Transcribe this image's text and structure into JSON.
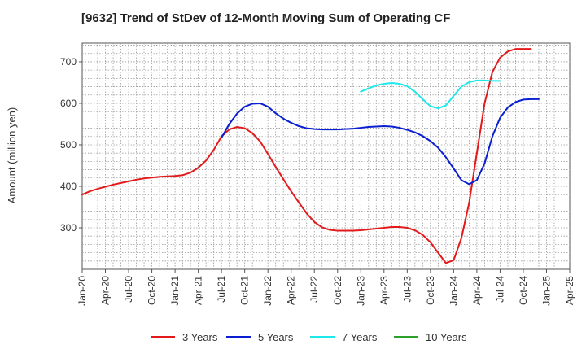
{
  "chart_data": {
    "type": "line",
    "title": "[9632]  Trend of StDev of 12-Month Moving Sum of Operating CF",
    "xlabel": "",
    "ylabel": "Amount (million yen)",
    "ylim": [
      200,
      745
    ],
    "yticks": [
      300,
      400,
      500,
      600,
      700
    ],
    "x_ticks": [
      "Jan-20",
      "Apr-20",
      "Jul-20",
      "Oct-20",
      "Jan-21",
      "Apr-21",
      "Jul-21",
      "Oct-21",
      "Jan-22",
      "Apr-22",
      "Jul-22",
      "Oct-22",
      "Jan-23",
      "Apr-23",
      "Jul-23",
      "Oct-23",
      "Jan-24",
      "Apr-24",
      "Jul-24",
      "Oct-24",
      "Jan-25",
      "Apr-25"
    ],
    "x_range": [
      "2020-01",
      "2025-04"
    ],
    "grid": true,
    "legend_position": "bottom",
    "series": [
      {
        "name": "3 Years",
        "color": "#e31a1c",
        "points": [
          [
            "2020-01",
            380
          ],
          [
            "2020-02",
            388
          ],
          [
            "2020-03",
            394
          ],
          [
            "2020-04",
            399
          ],
          [
            "2020-05",
            404
          ],
          [
            "2020-06",
            408
          ],
          [
            "2020-07",
            412
          ],
          [
            "2020-08",
            416
          ],
          [
            "2020-09",
            419
          ],
          [
            "2020-10",
            421
          ],
          [
            "2020-11",
            423
          ],
          [
            "2020-12",
            424
          ],
          [
            "2021-01",
            425
          ],
          [
            "2021-02",
            427
          ],
          [
            "2021-03",
            433
          ],
          [
            "2021-04",
            445
          ],
          [
            "2021-05",
            462
          ],
          [
            "2021-06",
            488
          ],
          [
            "2021-07",
            520
          ],
          [
            "2021-08",
            537
          ],
          [
            "2021-09",
            543
          ],
          [
            "2021-10",
            540
          ],
          [
            "2021-11",
            528
          ],
          [
            "2021-12",
            508
          ],
          [
            "2022-01",
            478
          ],
          [
            "2022-02",
            447
          ],
          [
            "2022-03",
            417
          ],
          [
            "2022-04",
            388
          ],
          [
            "2022-05",
            361
          ],
          [
            "2022-06",
            335
          ],
          [
            "2022-07",
            314
          ],
          [
            "2022-08",
            301
          ],
          [
            "2022-09",
            295
          ],
          [
            "2022-10",
            293
          ],
          [
            "2022-11",
            293
          ],
          [
            "2022-12",
            293
          ],
          [
            "2023-01",
            294
          ],
          [
            "2023-02",
            296
          ],
          [
            "2023-03",
            298
          ],
          [
            "2023-04",
            300
          ],
          [
            "2023-05",
            302
          ],
          [
            "2023-06",
            302
          ],
          [
            "2023-07",
            300
          ],
          [
            "2023-08",
            294
          ],
          [
            "2023-09",
            283
          ],
          [
            "2023-10",
            265
          ],
          [
            "2023-11",
            240
          ],
          [
            "2023-12",
            215
          ],
          [
            "2024-01",
            222
          ],
          [
            "2024-02",
            275
          ],
          [
            "2024-03",
            360
          ],
          [
            "2024-04",
            480
          ],
          [
            "2024-05",
            600
          ],
          [
            "2024-06",
            675
          ],
          [
            "2024-07",
            710
          ],
          [
            "2024-08",
            725
          ],
          [
            "2024-09",
            731
          ],
          [
            "2024-10",
            731
          ],
          [
            "2024-11",
            731
          ]
        ]
      },
      {
        "name": "5 Years",
        "color": "#0a1fd1",
        "points": [
          [
            "2021-07",
            517
          ],
          [
            "2021-08",
            550
          ],
          [
            "2021-09",
            575
          ],
          [
            "2021-10",
            592
          ],
          [
            "2021-11",
            599
          ],
          [
            "2021-12",
            600
          ],
          [
            "2022-01",
            592
          ],
          [
            "2022-02",
            576
          ],
          [
            "2022-03",
            563
          ],
          [
            "2022-04",
            553
          ],
          [
            "2022-05",
            545
          ],
          [
            "2022-06",
            540
          ],
          [
            "2022-07",
            538
          ],
          [
            "2022-08",
            537
          ],
          [
            "2022-09",
            537
          ],
          [
            "2022-10",
            537
          ],
          [
            "2022-11",
            538
          ],
          [
            "2022-12",
            539
          ],
          [
            "2023-01",
            541
          ],
          [
            "2023-02",
            543
          ],
          [
            "2023-03",
            544
          ],
          [
            "2023-04",
            545
          ],
          [
            "2023-05",
            544
          ],
          [
            "2023-06",
            541
          ],
          [
            "2023-07",
            536
          ],
          [
            "2023-08",
            530
          ],
          [
            "2023-09",
            521
          ],
          [
            "2023-10",
            509
          ],
          [
            "2023-11",
            493
          ],
          [
            "2023-12",
            470
          ],
          [
            "2024-01",
            443
          ],
          [
            "2024-02",
            415
          ],
          [
            "2024-03",
            405
          ],
          [
            "2024-04",
            415
          ],
          [
            "2024-05",
            455
          ],
          [
            "2024-06",
            520
          ],
          [
            "2024-07",
            565
          ],
          [
            "2024-08",
            590
          ],
          [
            "2024-09",
            603
          ],
          [
            "2024-10",
            609
          ],
          [
            "2024-11",
            610
          ],
          [
            "2024-12",
            610
          ]
        ]
      },
      {
        "name": "7 Years",
        "color": "#1ee8ea",
        "points": [
          [
            "2023-01",
            628
          ],
          [
            "2023-02",
            636
          ],
          [
            "2023-03",
            643
          ],
          [
            "2023-04",
            647
          ],
          [
            "2023-05",
            649
          ],
          [
            "2023-06",
            647
          ],
          [
            "2023-07",
            641
          ],
          [
            "2023-08",
            628
          ],
          [
            "2023-09",
            610
          ],
          [
            "2023-10",
            593
          ],
          [
            "2023-11",
            588
          ],
          [
            "2023-12",
            595
          ],
          [
            "2024-01",
            618
          ],
          [
            "2024-02",
            640
          ],
          [
            "2024-03",
            651
          ],
          [
            "2024-04",
            655
          ],
          [
            "2024-05",
            655
          ],
          [
            "2024-06",
            654
          ],
          [
            "2024-07",
            654
          ]
        ]
      },
      {
        "name": "10 Years",
        "color": "#2ca02c",
        "points": []
      }
    ]
  }
}
